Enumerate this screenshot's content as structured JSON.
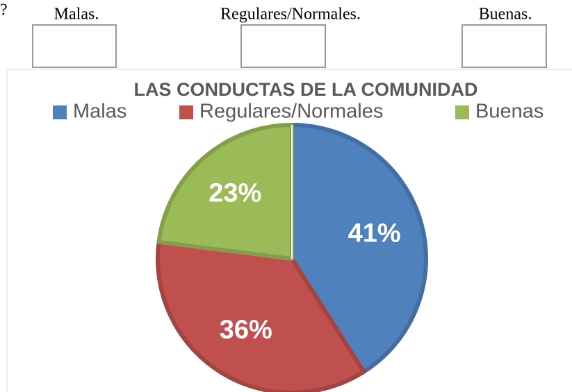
{
  "header": {
    "mark": "?",
    "labels": [
      "Malas.",
      "Regulares/Normales.",
      "Buenas."
    ]
  },
  "chart_data": {
    "type": "pie",
    "title": "LAS CONDUCTAS DE LA COMUNIDAD",
    "categories": [
      "Malas",
      "Regulares/Normales",
      "Buenas"
    ],
    "values": [
      41,
      36,
      23
    ],
    "value_labels": [
      "41%",
      "36%",
      "23%"
    ],
    "colors": [
      "#4f81bd",
      "#c0504d",
      "#9bbb59"
    ],
    "legend": "top"
  }
}
